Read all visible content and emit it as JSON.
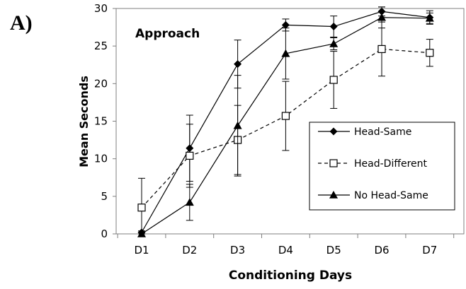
{
  "panel_label": "A)",
  "chart_data": {
    "type": "line",
    "title": "",
    "annotation": "Approach",
    "xlabel": "Conditioning Days",
    "ylabel": "Mean Seconds",
    "categories": [
      "D1",
      "D2",
      "D3",
      "D4",
      "D5",
      "D6",
      "D7"
    ],
    "ylim": [
      0,
      30
    ],
    "yticks": [
      0,
      5,
      10,
      15,
      20,
      25,
      30
    ],
    "grid": false,
    "legend_position": "bottom-right",
    "series": [
      {
        "name": "Head-Same",
        "marker": "filled-diamond",
        "line": "solid",
        "color": "#000000",
        "values": [
          0.2,
          11.4,
          22.6,
          27.8,
          27.6,
          29.6,
          28.8
        ],
        "error": [
          0.2,
          4.4,
          3.2,
          0.8,
          1.4,
          0.6,
          0.9
        ]
      },
      {
        "name": "Head-Different",
        "marker": "open-square",
        "line": "dashed",
        "color": "#000000",
        "values": [
          3.5,
          10.4,
          12.5,
          15.7,
          20.5,
          24.6,
          24.1
        ],
        "error": [
          3.9,
          4.2,
          4.6,
          4.6,
          3.8,
          3.6,
          1.8
        ]
      },
      {
        "name": "No Head-Same",
        "marker": "filled-triangle",
        "line": "solid",
        "color": "#000000",
        "values": [
          0.0,
          4.2,
          14.4,
          24.0,
          25.3,
          28.8,
          28.7
        ],
        "error": [
          0.2,
          2.4,
          6.7,
          3.4,
          0.8,
          1.4,
          0.7
        ]
      }
    ]
  }
}
